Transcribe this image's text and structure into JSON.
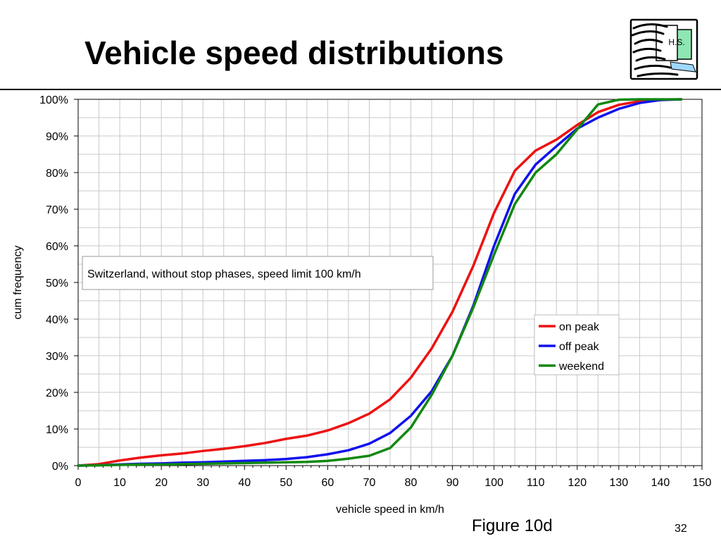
{
  "slide": {
    "title": "Vehicle speed distributions",
    "caption": "Figure 10d",
    "page_number": "32",
    "logo_text": "H.S."
  },
  "colors": {
    "on_peak": "#ee1111",
    "off_peak": "#1111ee",
    "weekend": "#118811",
    "grid": "#c8c8c8"
  },
  "chart_data": {
    "type": "line",
    "title": "",
    "annotation": "Switzerland, without stop phases, speed limit 100 km/h",
    "xlabel": "vehicle speed in km/h",
    "ylabel": "cum frequency",
    "xlim": [
      0,
      150
    ],
    "ylim": [
      0,
      100
    ],
    "x_ticks": [
      "0",
      "10",
      "20",
      "30",
      "40",
      "50",
      "60",
      "70",
      "80",
      "90",
      "100",
      "110",
      "120",
      "130",
      "140",
      "150"
    ],
    "y_ticks": [
      "0%",
      "10%",
      "20%",
      "30%",
      "40%",
      "50%",
      "60%",
      "70%",
      "80%",
      "90%",
      "100%"
    ],
    "grid": true,
    "legend_position": "right-middle",
    "x": [
      0,
      5,
      10,
      15,
      20,
      25,
      30,
      35,
      40,
      45,
      50,
      55,
      60,
      65,
      70,
      75,
      80,
      85,
      90,
      95,
      100,
      105,
      110,
      115,
      120,
      125,
      130,
      135,
      140,
      145
    ],
    "series": [
      {
        "name": "on peak",
        "values": [
          0,
          0.4,
          1.4,
          2.2,
          2.8,
          3.3,
          4.0,
          4.6,
          5.3,
          6.2,
          7.3,
          8.2,
          9.6,
          11.6,
          14.2,
          18.1,
          24.0,
          32.0,
          42.0,
          54.5,
          69.0,
          80.5,
          86.0,
          89.0,
          93.0,
          96.5,
          98.5,
          99.5,
          99.9,
          100
        ]
      },
      {
        "name": "off peak",
        "values": [
          0,
          0.1,
          0.3,
          0.5,
          0.6,
          0.8,
          0.9,
          1.1,
          1.3,
          1.5,
          1.8,
          2.3,
          3.1,
          4.2,
          6.0,
          8.9,
          13.6,
          20.3,
          30.0,
          43.6,
          60.0,
          74.2,
          82.2,
          87.2,
          92.0,
          95.0,
          97.4,
          99.0,
          99.8,
          100
        ]
      },
      {
        "name": "weekend",
        "values": [
          0,
          0.1,
          0.2,
          0.3,
          0.3,
          0.4,
          0.5,
          0.6,
          0.7,
          0.8,
          0.9,
          1.0,
          1.3,
          1.9,
          2.7,
          4.8,
          10.4,
          19.3,
          30.0,
          43.1,
          57.6,
          71.4,
          80.0,
          85.0,
          91.8,
          98.6,
          99.9,
          100,
          100,
          100
        ]
      }
    ]
  }
}
